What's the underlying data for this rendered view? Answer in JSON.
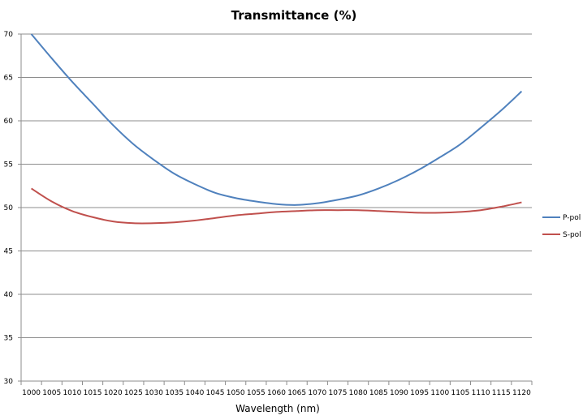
{
  "chart_data": {
    "type": "line",
    "title": "Transmittance (%)",
    "xlabel": "Wavelength (nm)",
    "ylabel": "",
    "x": [
      1000,
      1005,
      1010,
      1015,
      1020,
      1025,
      1030,
      1035,
      1040,
      1045,
      1050,
      1055,
      1060,
      1065,
      1070,
      1075,
      1080,
      1085,
      1090,
      1095,
      1100,
      1105,
      1110,
      1115,
      1120
    ],
    "ylim": [
      30,
      70
    ],
    "yticks": [
      30,
      35,
      40,
      45,
      50,
      55,
      60,
      65,
      70
    ],
    "grid": "horizontal",
    "legend": "right",
    "series": [
      {
        "name": "P-pol",
        "color": "#4F81BD",
        "values": [
          70.0,
          67.2,
          64.5,
          62.0,
          59.5,
          57.3,
          55.5,
          53.9,
          52.7,
          51.7,
          51.1,
          50.7,
          50.4,
          50.3,
          50.5,
          50.9,
          51.4,
          52.2,
          53.2,
          54.4,
          55.8,
          57.3,
          59.2,
          61.2,
          63.4
        ]
      },
      {
        "name": "S-pol",
        "color": "#C0504D",
        "values": [
          52.2,
          50.7,
          49.6,
          48.9,
          48.4,
          48.2,
          48.2,
          48.3,
          48.5,
          48.8,
          49.1,
          49.3,
          49.5,
          49.6,
          49.7,
          49.7,
          49.7,
          49.6,
          49.5,
          49.4,
          49.4,
          49.5,
          49.7,
          50.1,
          50.6
        ]
      }
    ]
  }
}
